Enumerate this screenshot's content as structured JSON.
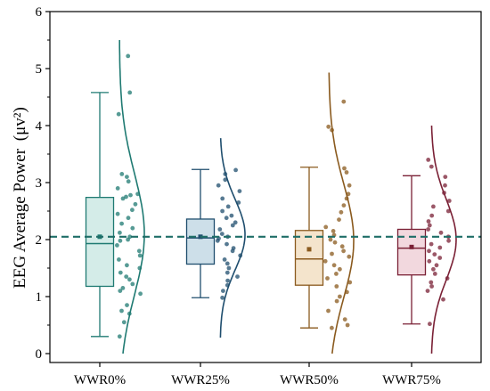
{
  "chart_data": {
    "type": "box",
    "ylabel": "EEG Average Power",
    "ylabel_unit": "(μv²)",
    "ylim": [
      0,
      6
    ],
    "yticks": [
      0,
      1,
      2,
      3,
      4,
      5,
      6
    ],
    "reference_line": 2.05,
    "categories": [
      "WWR0%",
      "WWR25%",
      "WWR50%",
      "WWR75%"
    ],
    "series": [
      {
        "name": "WWR0%",
        "color": "#1f7a72",
        "fill": "#d4ece8",
        "whisker_low": 0.3,
        "q1": 1.18,
        "median": 1.93,
        "mean": 2.05,
        "q3": 2.74,
        "whisker_high": 4.58,
        "density_range": [
          0,
          5.5
        ],
        "points": [
          5.22,
          4.58,
          4.2,
          3.15,
          3.1,
          3.02,
          2.9,
          2.8,
          2.78,
          2.75,
          2.72,
          2.62,
          2.52,
          2.45,
          2.38,
          2.28,
          2.2,
          2.12,
          2.05,
          2.0,
          1.98,
          1.9,
          1.8,
          1.72,
          1.65,
          1.55,
          1.5,
          1.42,
          1.35,
          1.3,
          1.22,
          1.15,
          1.1,
          1.05,
          0.85,
          0.75,
          0.7,
          0.55,
          0.3
        ]
      },
      {
        "name": "WWR25%",
        "color": "#1f4e6e",
        "fill": "#cddfe9",
        "whisker_low": 0.98,
        "q1": 1.57,
        "median": 2.03,
        "mean": 2.05,
        "q3": 2.36,
        "whisker_high": 3.23,
        "density_range": [
          0.28,
          3.78
        ],
        "points": [
          3.22,
          3.15,
          3.05,
          2.95,
          2.85,
          2.72,
          2.65,
          2.58,
          2.5,
          2.42,
          2.38,
          2.3,
          2.25,
          2.18,
          2.1,
          2.05,
          2.02,
          1.98,
          1.92,
          1.85,
          1.8,
          1.72,
          1.65,
          1.58,
          1.5,
          1.42,
          1.35,
          1.28,
          1.2,
          1.1,
          0.98
        ]
      },
      {
        "name": "WWR50%",
        "color": "#8a5a1e",
        "fill": "#f4e4cc",
        "whisker_low": 0.45,
        "q1": 1.2,
        "median": 1.66,
        "mean": 1.83,
        "q3": 2.16,
        "whisker_high": 3.27,
        "density_range": [
          0,
          4.93
        ],
        "points": [
          4.42,
          3.98,
          3.92,
          3.25,
          3.18,
          2.95,
          2.8,
          2.72,
          2.6,
          2.48,
          2.35,
          2.22,
          2.15,
          2.08,
          2.0,
          1.95,
          1.88,
          1.8,
          1.75,
          1.7,
          1.62,
          1.55,
          1.48,
          1.4,
          1.32,
          1.25,
          1.18,
          1.08,
          1.0,
          0.92,
          0.75,
          0.6,
          0.5,
          0.45
        ]
      },
      {
        "name": "WWR75%",
        "color": "#7a2035",
        "fill": "#f2d8de",
        "whisker_low": 0.52,
        "q1": 1.38,
        "median": 1.85,
        "mean": 1.87,
        "q3": 2.18,
        "whisker_high": 3.12,
        "density_range": [
          0,
          4.0
        ],
        "points": [
          3.4,
          3.28,
          3.1,
          2.95,
          2.82,
          2.68,
          2.58,
          2.5,
          2.42,
          2.32,
          2.25,
          2.18,
          2.12,
          2.05,
          1.98,
          1.92,
          1.86,
          1.8,
          1.74,
          1.68,
          1.62,
          1.55,
          1.48,
          1.4,
          1.32,
          1.25,
          1.18,
          1.1,
          0.95,
          0.52
        ]
      }
    ]
  }
}
